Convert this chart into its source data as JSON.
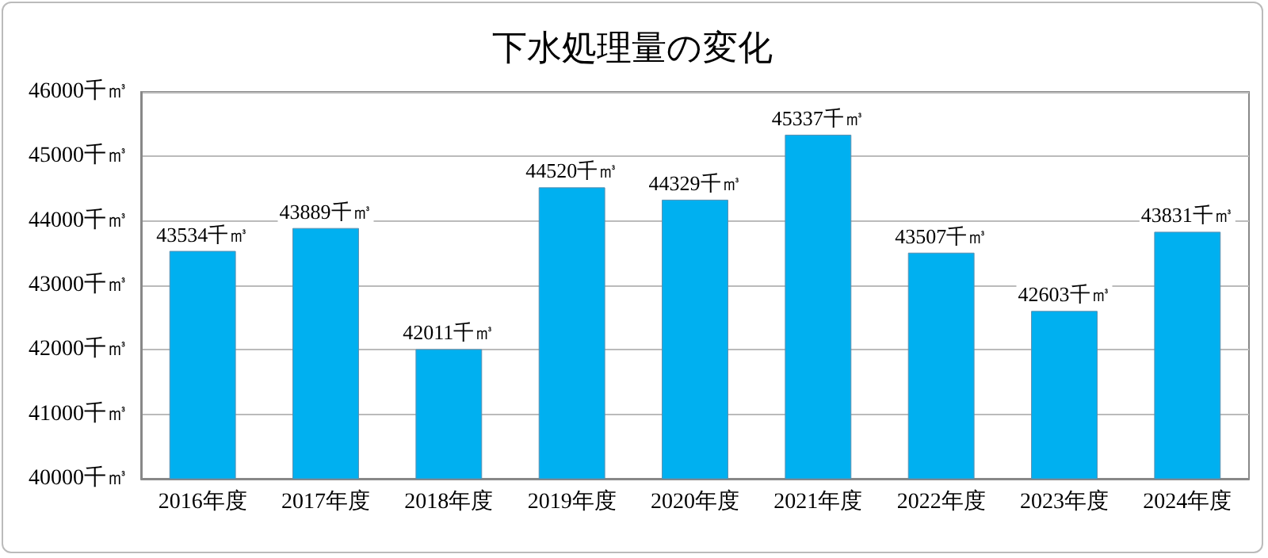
{
  "chart_data": {
    "type": "bar",
    "title": "下水処理量の変化",
    "categories": [
      "2016年度",
      "2017年度",
      "2018年度",
      "2019年度",
      "2020年度",
      "2021年度",
      "2022年度",
      "2023年度",
      "2024年度"
    ],
    "values": [
      43534,
      43889,
      42011,
      44520,
      44329,
      45337,
      43507,
      42603,
      43831
    ],
    "value_labels": [
      "43534千㎥",
      "43889千㎥",
      "42011千㎥",
      "44520千㎥",
      "44329千㎥",
      "45337千㎥",
      "43507千㎥",
      "42603千㎥",
      "43831千㎥"
    ],
    "color": "#00b0f0",
    "ylim": [
      40000,
      46000
    ],
    "yticks": [
      {
        "value": 40000,
        "label": "40000千㎥"
      },
      {
        "value": 41000,
        "label": "41000千㎥"
      },
      {
        "value": 42000,
        "label": "42000千㎥"
      },
      {
        "value": 43000,
        "label": "43000千㎥"
      },
      {
        "value": 44000,
        "label": "44000千㎥"
      },
      {
        "value": 45000,
        "label": "45000千㎥"
      },
      {
        "value": 46000,
        "label": "46000千㎥"
      }
    ],
    "grid": "y"
  }
}
